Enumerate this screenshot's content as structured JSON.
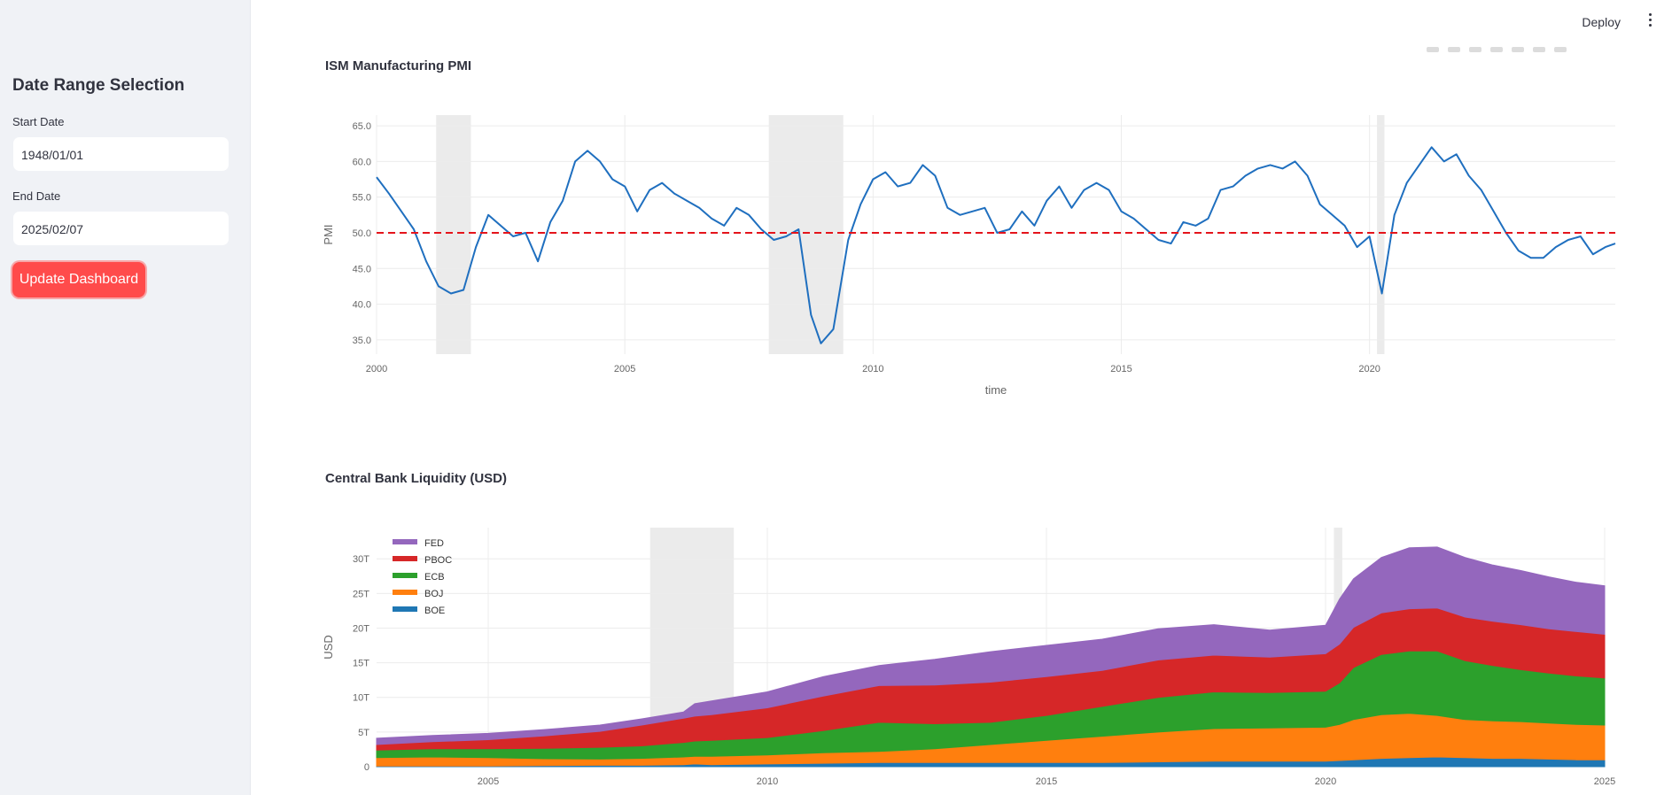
{
  "sidebar": {
    "title": "Date Range Selection",
    "start_label": "Start Date",
    "start_value": "1948/01/01",
    "end_label": "End Date",
    "end_value": "2025/02/07",
    "update_button": "Update Dashboard"
  },
  "header": {
    "deploy_label": "Deploy",
    "menu_icon": "vertical-dots-icon"
  },
  "colors": {
    "accent": "#ff4b4b",
    "pmi_line": "#1f6fbf",
    "threshold": "#e4141b",
    "recession": "#ebebeb"
  },
  "chart_data": [
    {
      "type": "line",
      "title": "ISM Manufacturing PMI",
      "xlabel": "time",
      "ylabel": "PMI",
      "ylim": [
        33,
        66.5
      ],
      "xlim": [
        2000.0,
        2024.95
      ],
      "yticks": [
        "35.0",
        "40.0",
        "45.0",
        "50.0",
        "55.0",
        "60.0",
        "65.0"
      ],
      "xticks": [
        "2000",
        "2005",
        "2010",
        "2015",
        "2020"
      ],
      "grid": true,
      "threshold": 50,
      "recessions": [
        [
          2001.2,
          2001.9
        ],
        [
          2007.9,
          2009.4
        ],
        [
          2020.15,
          2020.3
        ]
      ],
      "series": [
        {
          "x": [
            2000.0,
            2000.25,
            2000.5,
            2000.75,
            2001.0,
            2001.25,
            2001.5,
            2001.75,
            2002.0,
            2002.25,
            2002.5,
            2002.75,
            2003.0,
            2003.25,
            2003.5,
            2003.75,
            2004.0,
            2004.25,
            2004.5,
            2004.75,
            2005.0,
            2005.25,
            2005.5,
            2005.75,
            2006.0,
            2006.25,
            2006.5,
            2006.75,
            2007.0,
            2007.25,
            2007.5,
            2007.75,
            2008.0,
            2008.25,
            2008.5,
            2008.75,
            2008.95,
            2009.2,
            2009.5,
            2009.75,
            2010.0,
            2010.25,
            2010.5,
            2010.75,
            2011.0,
            2011.25,
            2011.5,
            2011.75,
            2012.0,
            2012.25,
            2012.5,
            2012.75,
            2013.0,
            2013.25,
            2013.5,
            2013.75,
            2014.0,
            2014.25,
            2014.5,
            2014.75,
            2015.0,
            2015.25,
            2015.5,
            2015.75,
            2016.0,
            2016.25,
            2016.5,
            2016.75,
            2017.0,
            2017.25,
            2017.5,
            2017.75,
            2018.0,
            2018.25,
            2018.5,
            2018.75,
            2019.0,
            2019.25,
            2019.5,
            2019.75,
            2020.0,
            2020.25,
            2020.5,
            2020.75,
            2021.0,
            2021.25,
            2021.5,
            2021.75,
            2022.0,
            2022.25,
            2022.5,
            2022.75,
            2023.0,
            2023.25,
            2023.5,
            2023.75,
            2024.0,
            2024.25,
            2024.5,
            2024.75,
            2024.95
          ],
          "y": [
            57.8,
            55.5,
            53.0,
            50.5,
            46.0,
            42.5,
            41.5,
            42.0,
            48.0,
            52.5,
            51.0,
            49.5,
            50.0,
            46.0,
            51.5,
            54.5,
            60.0,
            61.5,
            60.0,
            57.5,
            56.5,
            53.0,
            56.0,
            57.0,
            55.5,
            54.5,
            53.5,
            52.0,
            51.0,
            53.5,
            52.5,
            50.5,
            49.0,
            49.5,
            50.5,
            38.5,
            34.5,
            36.5,
            49.0,
            54.0,
            57.5,
            58.5,
            56.5,
            57.0,
            59.5,
            58.0,
            53.5,
            52.5,
            53.0,
            53.5,
            50.0,
            50.5,
            53.0,
            51.0,
            54.5,
            56.5,
            53.5,
            56.0,
            57.0,
            56.0,
            53.0,
            52.0,
            50.5,
            49.0,
            48.5,
            51.5,
            51.0,
            52.0,
            56.0,
            56.5,
            58.0,
            59.0,
            59.5,
            59.0,
            60.0,
            58.0,
            54.0,
            52.5,
            51.0,
            48.0,
            49.5,
            41.5,
            52.5,
            57.0,
            59.5,
            62.0,
            60.0,
            61.0,
            58.0,
            56.0,
            53.0,
            50.0,
            47.5,
            46.5,
            46.5,
            48.0,
            49.0,
            49.5,
            47.0,
            48.0,
            48.5
          ]
        }
      ]
    },
    {
      "type": "area",
      "title": "Central Bank Liquidity (USD)",
      "xlabel": "",
      "ylabel": "USD",
      "ylim": [
        0,
        34.5
      ],
      "xlim": [
        2003.0,
        2025.0
      ],
      "yticks": [
        "0",
        "5T",
        "10T",
        "15T",
        "20T",
        "25T",
        "30T"
      ],
      "xticks": [
        "2005",
        "2010",
        "2015",
        "2020",
        "2025"
      ],
      "grid": true,
      "legend_placement": "top-left",
      "recessions": [
        [
          2007.9,
          2009.4
        ],
        [
          2020.15,
          2020.3
        ]
      ],
      "x": [
        2003.0,
        2004.0,
        2005.0,
        2006.0,
        2007.0,
        2007.75,
        2008.5,
        2008.7,
        2009.0,
        2010.0,
        2011.0,
        2012.0,
        2013.0,
        2014.0,
        2015.0,
        2016.0,
        2017.0,
        2018.0,
        2019.0,
        2020.0,
        2020.25,
        2020.5,
        2021.0,
        2021.5,
        2022.0,
        2022.5,
        2023.0,
        2023.5,
        2024.0,
        2024.5,
        2025.0
      ],
      "series": [
        {
          "name": "BOE",
          "color": "#1f77b4",
          "values": [
            0.1,
            0.1,
            0.1,
            0.15,
            0.2,
            0.2,
            0.3,
            0.4,
            0.3,
            0.4,
            0.5,
            0.6,
            0.6,
            0.6,
            0.6,
            0.6,
            0.7,
            0.8,
            0.8,
            0.8,
            0.9,
            1.0,
            1.2,
            1.3,
            1.4,
            1.3,
            1.2,
            1.2,
            1.1,
            1.0,
            1.0
          ]
        },
        {
          "name": "BOJ",
          "color": "#ff7f0e",
          "values": [
            1.2,
            1.3,
            1.2,
            1.0,
            0.9,
            1.0,
            1.1,
            1.1,
            1.2,
            1.3,
            1.5,
            1.6,
            2.0,
            2.6,
            3.2,
            3.8,
            4.3,
            4.7,
            4.8,
            4.9,
            5.2,
            5.8,
            6.3,
            6.4,
            6.0,
            5.5,
            5.4,
            5.3,
            5.2,
            5.1,
            5.0
          ]
        },
        {
          "name": "ECB",
          "color": "#2ca02c",
          "values": [
            1.1,
            1.2,
            1.3,
            1.5,
            1.7,
            1.8,
            2.1,
            2.2,
            2.3,
            2.5,
            3.2,
            4.2,
            3.6,
            3.2,
            3.6,
            4.3,
            5.0,
            5.3,
            5.1,
            5.2,
            6.0,
            7.5,
            8.7,
            9.0,
            9.3,
            8.5,
            8.0,
            7.5,
            7.2,
            7.0,
            6.8
          ]
        },
        {
          "name": "PBOC",
          "color": "#d62728",
          "values": [
            0.8,
            1.0,
            1.3,
            1.8,
            2.3,
            3.0,
            3.5,
            3.6,
            3.7,
            4.3,
            5.0,
            5.3,
            5.6,
            5.8,
            5.6,
            5.2,
            5.4,
            5.3,
            5.1,
            5.4,
            5.6,
            5.8,
            6.0,
            6.1,
            6.2,
            6.3,
            6.4,
            6.5,
            6.4,
            6.4,
            6.3
          ]
        },
        {
          "name": "FED",
          "color": "#9467bd",
          "values": [
            0.9,
            0.9,
            0.9,
            0.9,
            0.9,
            0.9,
            0.9,
            1.8,
            2.0,
            2.3,
            2.8,
            2.9,
            3.7,
            4.4,
            4.5,
            4.5,
            4.5,
            4.4,
            3.9,
            4.1,
            6.5,
            7.0,
            8.0,
            8.8,
            8.8,
            8.6,
            8.1,
            7.8,
            7.5,
            7.1,
            7.0
          ]
        }
      ]
    }
  ]
}
